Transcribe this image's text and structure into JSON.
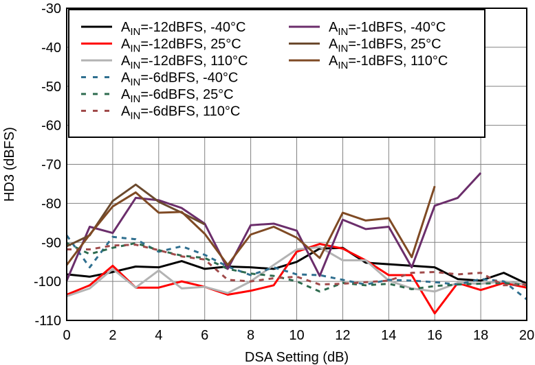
{
  "chart_data": {
    "type": "line",
    "title": "",
    "xlabel": "DSA Setting (dB)",
    "ylabel": "HD3 (dBFS)",
    "xlim": [
      0,
      20
    ],
    "ylim": [
      -110,
      -30
    ],
    "xticks": [
      0,
      2,
      4,
      6,
      8,
      10,
      12,
      14,
      16,
      18,
      20
    ],
    "yticks": [
      -30,
      -40,
      -50,
      -60,
      -70,
      -80,
      -90,
      -100,
      -110
    ],
    "grid": true,
    "legend_position": "top",
    "series": [
      {
        "name": "AIN=-12dBFS, -40°C",
        "label_main": "A",
        "label_sub": "IN",
        "label_rest": "=-12dBFS, -40°C",
        "color": "#000000",
        "dash": "solid",
        "x": [
          0,
          1,
          2,
          3,
          4,
          5,
          6,
          7,
          8,
          9,
          10,
          11,
          12,
          13,
          14,
          15,
          16,
          17,
          18,
          19,
          20
        ],
        "y": [
          -98.2,
          -98.8,
          -97.6,
          -96.2,
          -96.4,
          -94.8,
          -96.8,
          -96.2,
          -96.4,
          -96.8,
          -95.0,
          -91.6,
          -91.4,
          -95.2,
          -95.6,
          -96.0,
          -96.4,
          -99.4,
          -99.8,
          -97.8,
          -100.6
        ]
      },
      {
        "name": "AIN=-12dBFS, 25°C",
        "label_main": "A",
        "label_sub": "IN",
        "label_rest": "=-12dBFS, 25°C",
        "color": "#ff0000",
        "dash": "solid",
        "x": [
          0,
          1,
          2,
          3,
          4,
          5,
          6,
          7,
          8,
          9,
          10,
          11,
          12,
          13,
          14,
          15,
          16,
          17,
          18,
          19,
          20
        ],
        "y": [
          -103.4,
          -101.0,
          -96.0,
          -101.6,
          -101.6,
          -100.0,
          -101.4,
          -103.4,
          -102.4,
          -101.0,
          -92.4,
          -90.4,
          -91.6,
          -94.6,
          -98.4,
          -98.4,
          -108.2,
          -100.4,
          -102.2,
          -100.4,
          -101.6
        ]
      },
      {
        "name": "AIN=-12dBFS, 110°C",
        "label_main": "A",
        "label_sub": "IN",
        "label_rest": "=-12dBFS, 110°C",
        "color": "#b3b3b3",
        "dash": "solid",
        "x": [
          0,
          1,
          2,
          3,
          4,
          5,
          6,
          7,
          8,
          9,
          10,
          11,
          12,
          13,
          14,
          15,
          16,
          17,
          18,
          19,
          20
        ],
        "y": [
          -103.8,
          -101.8,
          -96.8,
          -101.6,
          -97.2,
          -101.8,
          -101.4,
          -103.0,
          -100.0,
          -95.8,
          -91.8,
          -91.2,
          -94.6,
          -94.6,
          -99.8,
          -101.8,
          -102.6,
          -100.4,
          -100.6,
          -100.0,
          -100.8
        ]
      },
      {
        "name": "AIN=-6dBFS, -40°C",
        "label_main": "A",
        "label_sub": "IN",
        "label_rest": "=-6dBFS, -40°C",
        "color": "#2f6f8f",
        "dash": "dashed",
        "x": [
          0,
          1,
          2,
          3,
          4,
          5,
          6,
          7,
          8,
          9,
          10,
          11,
          12,
          13,
          14,
          15,
          16,
          17,
          18,
          19,
          20
        ],
        "y": [
          -88.2,
          -96.4,
          -88.6,
          -89.2,
          -92.4,
          -91.0,
          -93.2,
          -96.2,
          -98.4,
          -96.4,
          -98.2,
          -98.4,
          -99.6,
          -100.8,
          -99.6,
          -99.8,
          -100.2,
          -100.8,
          -99.4,
          -100.0,
          -104.6
        ]
      },
      {
        "name": "AIN=-6dBFS, 25°C",
        "label_main": "A",
        "label_sub": "IN",
        "label_rest": "=-6dBFS, 25°C",
        "color": "#2e6b4f",
        "dash": "dashed",
        "x": [
          0,
          1,
          2,
          3,
          4,
          5,
          6,
          7,
          8,
          9,
          10,
          11,
          12,
          13,
          14,
          15,
          16,
          17,
          18,
          19,
          20
        ],
        "y": [
          -90.2,
          -93.0,
          -91.4,
          -90.2,
          -92.0,
          -93.4,
          -94.0,
          -96.8,
          -98.0,
          -98.6,
          -100.0,
          -102.6,
          -100.4,
          -101.0,
          -100.6,
          -102.0,
          -101.2,
          -100.8,
          -100.6,
          -100.4,
          -101.0
        ]
      },
      {
        "name": "AIN=-6dBFS, 110°C",
        "label_main": "A",
        "label_sub": "IN",
        "label_rest": "=-6dBFS, 110°C",
        "color": "#a04a4a",
        "dash": "dashed",
        "x": [
          0,
          1,
          2,
          3,
          4,
          5,
          6,
          7,
          8,
          9,
          10,
          11,
          12,
          13,
          14,
          15,
          16,
          17,
          18,
          19,
          20
        ],
        "y": [
          -91.8,
          -91.8,
          -90.8,
          -90.6,
          -92.0,
          -93.6,
          -94.4,
          -99.6,
          -100.0,
          -99.2,
          -98.8,
          -100.8,
          -100.6,
          -100.2,
          -99.8,
          -97.8,
          -97.6,
          -98.2,
          -97.8,
          -101.0,
          -100.8
        ]
      },
      {
        "name": "AIN=-1dBFS, -40°C",
        "label_main": "A",
        "label_sub": "IN",
        "label_rest": "=-1dBFS, -40°C",
        "color": "#6b2e6b",
        "dash": "solid",
        "x": [
          0,
          1,
          2,
          3,
          4,
          5,
          6,
          7,
          8,
          9,
          10,
          11,
          12,
          13,
          14,
          15,
          16,
          17,
          18
        ],
        "y": [
          -99.8,
          -86.0,
          -87.6,
          -78.6,
          -79.2,
          -81.2,
          -85.2,
          -96.8,
          -85.6,
          -85.2,
          -87.0,
          -98.6,
          -84.2,
          -86.6,
          -86.0,
          -96.4,
          -80.6,
          -78.6,
          -72.2
        ]
      },
      {
        "name": "AIN=-1dBFS, 25°C",
        "label_main": "A",
        "label_sub": "IN",
        "label_rest": "=-1dBFS, 25°C",
        "color": "#6b4a2e",
        "dash": "solid",
        "x": [
          0,
          1,
          2,
          3,
          4,
          5,
          6
        ],
        "y": [
          -91.0,
          -88.2,
          -79.4,
          -75.2,
          -79.6,
          -82.4,
          -85.4
        ]
      },
      {
        "name": "AIN=-1dBFS, 110°C",
        "label_main": "A",
        "label_sub": "IN",
        "label_rest": "=-1dBFS, 110°C",
        "color": "#7f4a24",
        "dash": "solid",
        "x": [
          0,
          1,
          2,
          3,
          4,
          5,
          6,
          7,
          8,
          9,
          10,
          11,
          12,
          13,
          14,
          15,
          16
        ],
        "y": [
          -95.8,
          -88.0,
          -80.8,
          -77.2,
          -82.4,
          -82.2,
          -87.8,
          -95.8,
          -88.0,
          -86.0,
          -88.8,
          -94.0,
          -82.4,
          -84.4,
          -83.8,
          -93.8,
          -75.6
        ]
      }
    ]
  }
}
